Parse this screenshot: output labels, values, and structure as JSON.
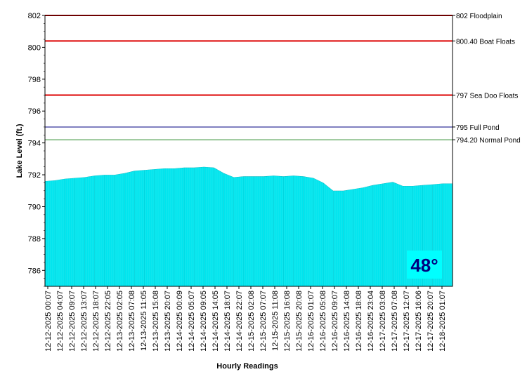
{
  "chart_data": {
    "type": "area",
    "title": "",
    "xlabel": "Hourly Readings",
    "ylabel": "Lake Level (ft.)",
    "ylim": [
      785,
      802
    ],
    "yticks": [
      786,
      788,
      790,
      792,
      794,
      796,
      798,
      800,
      802
    ],
    "grid": false,
    "fill_color": "#00e5ee",
    "x_tick_labels": [
      "12-12-2025 00:07",
      "12-12-2025 04:07",
      "12-12-2025 09:07",
      "12-12-2025 13:07",
      "12-12-2025 18:07",
      "12-12-2025 22:05",
      "12-13-2025 02:05",
      "12-13-2025 07:08",
      "12-13-2025 11:05",
      "12-13-2025 15:08",
      "12-13-2025 20:07",
      "12-14-2025 00:09",
      "12-14-2025 05:07",
      "12-14-2025 09:05",
      "12-14-2025 14:05",
      "12-14-2025 18:07",
      "12-14-2025 22:07",
      "12-15-2025 02:08",
      "12-15-2025 07:07",
      "12-15-2025 11:08",
      "12-15-2025 16:08",
      "12-15-2025 20:08",
      "12-16-2025 01:07",
      "12-16-2025 05:08",
      "12-16-2025 09:07",
      "12-16-2025 14:08",
      "12-16-2025 18:08",
      "12-16-2025 23:04",
      "12-17-2025 03:08",
      "12-17-2025 07:08",
      "12-17-2025 12:07",
      "12-17-2025 16:06",
      "12-17-2025 20:07",
      "12-18-2025 01:07"
    ],
    "series": [
      {
        "values": [
          791.6,
          791.65,
          791.75,
          791.8,
          791.85,
          791.95,
          792.0,
          792.0,
          792.1,
          792.25,
          792.3,
          792.35,
          792.4,
          792.4,
          792.45,
          792.45,
          792.5,
          792.45,
          792.1,
          791.85,
          791.9,
          791.9,
          791.9,
          791.95,
          791.9,
          791.95,
          791.9,
          791.8,
          791.5,
          791.0,
          791.0,
          791.1,
          791.2,
          791.35,
          791.45,
          791.55,
          791.3,
          791.3,
          791.35,
          791.4,
          791.45,
          791.45
        ]
      }
    ],
    "reference_lines": [
      {
        "value": 802,
        "label": "802 Floodplain",
        "color": "#dd0000"
      },
      {
        "value": 800.4,
        "label": "800.40 Boat Floats",
        "color": "#dd0000"
      },
      {
        "value": 797,
        "label": "797 Sea Doo Floats",
        "color": "#dd0000"
      },
      {
        "value": 795,
        "label": "795 Full Pond",
        "color": "#000080"
      },
      {
        "value": 794.2,
        "label": "794.20 Normal Pond",
        "color": "#2e8b2e"
      }
    ],
    "annotation": {
      "text": "48°",
      "background": "#00ffff",
      "color": "#000080"
    }
  }
}
